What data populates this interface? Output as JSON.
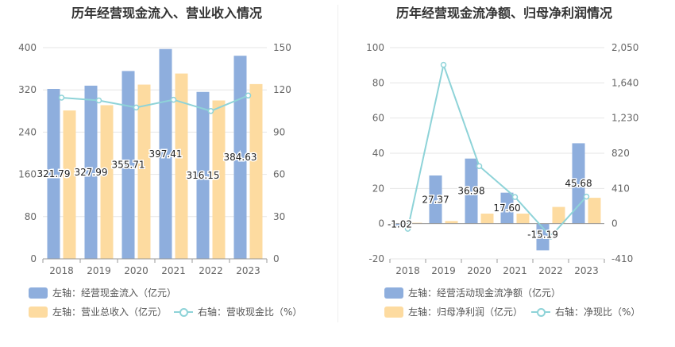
{
  "charts": {
    "left": {
      "title": "历年经营现金流入、营业收入情况",
      "legend": {
        "bar1": "左轴：经营现金流入（亿元）",
        "bar2": "左轴：营业总收入（亿元）",
        "line": "右轴：营收现金比（%）"
      }
    },
    "right": {
      "title": "历年经营现金流净额、归母净利润情况",
      "legend": {
        "bar1": "左轴：经营活动现金流净额（亿元）",
        "bar2": "左轴：归母净利润（亿元）",
        "line": "右轴：净现比（%）"
      }
    }
  },
  "colors": {
    "bar1": "#8eaedd",
    "bar2": "#fddba0",
    "line": "#8ed3d8",
    "grid": "#e6e6e6",
    "axis": "#999999"
  },
  "chart_data": [
    {
      "type": "bar",
      "title": "历年经营现金流入、营业收入情况",
      "categories": [
        "2018",
        "2019",
        "2020",
        "2021",
        "2022",
        "2023"
      ],
      "left_axis": {
        "ylim": [
          0,
          400
        ],
        "ticks": [
          "0",
          "80",
          "160",
          "240",
          "320",
          "400"
        ]
      },
      "right_axis": {
        "ylim": [
          0,
          150
        ],
        "ticks": [
          "0",
          "30",
          "60",
          "90",
          "120",
          "150"
        ]
      },
      "series": [
        {
          "name": "左轴：经营现金流入（亿元）",
          "axis": "left",
          "kind": "bar",
          "values": [
            321.79,
            327.99,
            355.71,
            397.41,
            316.15,
            384.63
          ],
          "labels": [
            "321.79",
            "327.99",
            "355.71",
            "397.41",
            "316.15",
            "384.63"
          ]
        },
        {
          "name": "左轴：营业总收入（亿元）",
          "axis": "left",
          "kind": "bar",
          "values": [
            281,
            291,
            330,
            351,
            300,
            331
          ]
        },
        {
          "name": "右轴：营收现金比（%）",
          "axis": "right",
          "kind": "line",
          "values": [
            114.5,
            112.5,
            107.5,
            113,
            105,
            116
          ]
        }
      ]
    },
    {
      "type": "bar",
      "title": "历年经营现金流净额、归母净利润情况",
      "categories": [
        "2018",
        "2019",
        "2020",
        "2021",
        "2022",
        "2023"
      ],
      "left_axis": {
        "ylim": [
          -20,
          100
        ],
        "ticks": [
          "-20",
          "0",
          "20",
          "40",
          "60",
          "80",
          "100"
        ]
      },
      "right_axis": {
        "ylim": [
          -410,
          2050
        ],
        "ticks": [
          "-410",
          "0",
          "410",
          "820",
          "1,230",
          "1,640",
          "2,050"
        ]
      },
      "series": [
        {
          "name": "左轴：经营活动现金流净额（亿元）",
          "axis": "left",
          "kind": "bar",
          "values": [
            -1.02,
            27.37,
            36.98,
            17.6,
            -15.19,
            45.68
          ],
          "labels": [
            "-1.02",
            "27.37",
            "36.98",
            "17.60",
            "-15.19",
            "45.68"
          ]
        },
        {
          "name": "左轴：归母净利润（亿元）",
          "axis": "left",
          "kind": "bar",
          "values": [
            0.5,
            1.5,
            5.7,
            5.7,
            9.5,
            14.7
          ]
        },
        {
          "name": "右轴：净现比（%）",
          "axis": "right",
          "kind": "line",
          "values": [
            -60,
            1850,
            670,
            310,
            -150,
            315
          ]
        }
      ]
    }
  ]
}
